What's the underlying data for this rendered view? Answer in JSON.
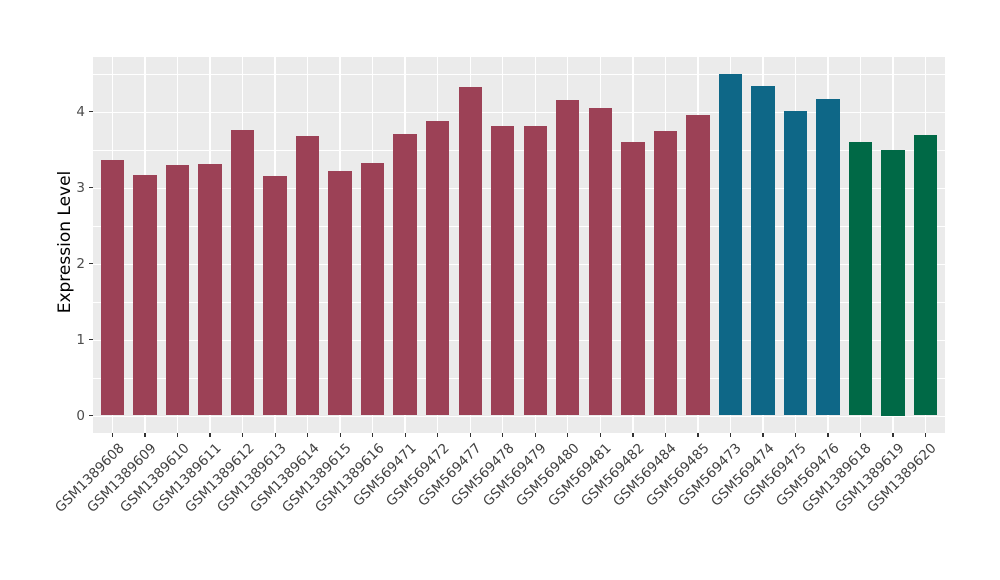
{
  "figure": {
    "ylabel": "Expression Level",
    "panel_background": "#EBEBEB",
    "gridline_color": "#FFFFFF",
    "axis_text_color": "#4D4D4D",
    "group_colors": {
      "maroon": "#9C4156",
      "teal": "#0E6787",
      "green": "#006946"
    }
  },
  "chart_data": {
    "type": "bar",
    "title": "",
    "xlabel": "",
    "ylabel": "Expression Level",
    "ylim": [
      0,
      4.72
    ],
    "yticks": [
      0,
      1,
      2,
      3,
      4
    ],
    "yticks_minor": [
      0.5,
      1.5,
      2.5,
      3.5,
      4.5
    ],
    "grid": true,
    "legend_position": "none",
    "categories": [
      "GSM1389608",
      "GSM1389609",
      "GSM1389610",
      "GSM1389611",
      "GSM1389612",
      "GSM1389613",
      "GSM1389614",
      "GSM1389615",
      "GSM1389616",
      "GSM569471",
      "GSM569472",
      "GSM569477",
      "GSM569478",
      "GSM569479",
      "GSM569480",
      "GSM569481",
      "GSM569482",
      "GSM569484",
      "GSM569485",
      "GSM569473",
      "GSM569474",
      "GSM569475",
      "GSM569476",
      "GSM1389618",
      "GSM1389619",
      "GSM1389620"
    ],
    "values": [
      3.36,
      3.17,
      3.29,
      3.31,
      3.76,
      3.15,
      3.68,
      3.22,
      3.32,
      3.7,
      3.87,
      4.32,
      3.81,
      3.81,
      4.15,
      4.05,
      3.6,
      3.74,
      3.95,
      4.49,
      4.34,
      4.01,
      4.17,
      3.6,
      3.5,
      3.69
    ],
    "bar_colors": [
      "#9C4156",
      "#9C4156",
      "#9C4156",
      "#9C4156",
      "#9C4156",
      "#9C4156",
      "#9C4156",
      "#9C4156",
      "#9C4156",
      "#9C4156",
      "#9C4156",
      "#9C4156",
      "#9C4156",
      "#9C4156",
      "#9C4156",
      "#9C4156",
      "#9C4156",
      "#9C4156",
      "#9C4156",
      "#0E6787",
      "#0E6787",
      "#0E6787",
      "#0E6787",
      "#006946",
      "#006946",
      "#006946"
    ]
  }
}
